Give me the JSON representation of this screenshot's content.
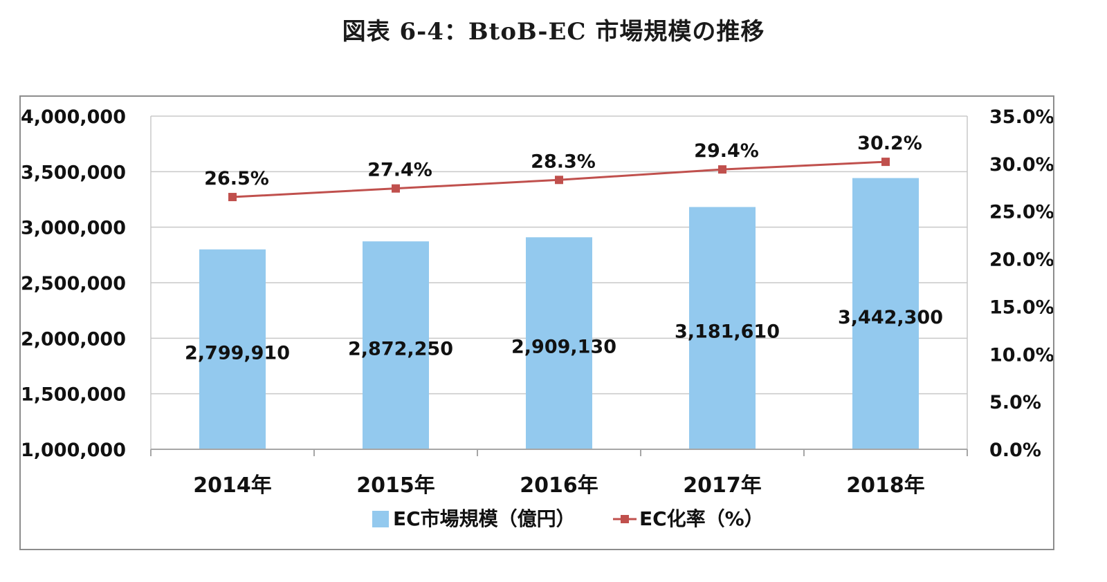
{
  "figure": {
    "title": "図表 6-4：BtoB-EC 市場規模の推移"
  },
  "chart_data": {
    "type": "bar",
    "title": "",
    "categories": [
      "2014年",
      "2015年",
      "2016年",
      "2017年",
      "2018年"
    ],
    "series": [
      {
        "name": "EC市場規模（億円）",
        "type": "bar",
        "axis": "left",
        "color": "#93c9ee",
        "values": [
          2799910,
          2872250,
          2909130,
          3181610,
          3442300
        ],
        "labels": [
          "2,799,910",
          "2,872,250",
          "2,909,130",
          "3,181,610",
          "3,442,300"
        ]
      },
      {
        "name": "EC化率（%）",
        "type": "line",
        "axis": "right",
        "color": "#c0504d",
        "marker": "square",
        "values": [
          26.5,
          27.4,
          28.3,
          29.4,
          30.2
        ],
        "labels": [
          "26.5%",
          "27.4%",
          "28.3%",
          "29.4%",
          "30.2%"
        ]
      }
    ],
    "y_left": {
      "min": 1000000,
      "max": 4000000,
      "ticks": [
        1000000,
        1500000,
        2000000,
        2500000,
        3000000,
        3500000,
        4000000
      ],
      "tick_labels": [
        "1,000,000",
        "1,500,000",
        "2,000,000",
        "2,500,000",
        "3,000,000",
        "3,500,000",
        "4,000,000"
      ]
    },
    "y_right": {
      "min": 0,
      "max": 35,
      "ticks": [
        0,
        5,
        10,
        15,
        20,
        25,
        30,
        35
      ],
      "tick_labels": [
        "0.0%",
        "5.0%",
        "10.0%",
        "15.0%",
        "20.0%",
        "25.0%",
        "30.0%",
        "35.0%"
      ]
    },
    "xlabel": "",
    "ylabel": "",
    "grid": true,
    "legend_position": "bottom-center"
  }
}
